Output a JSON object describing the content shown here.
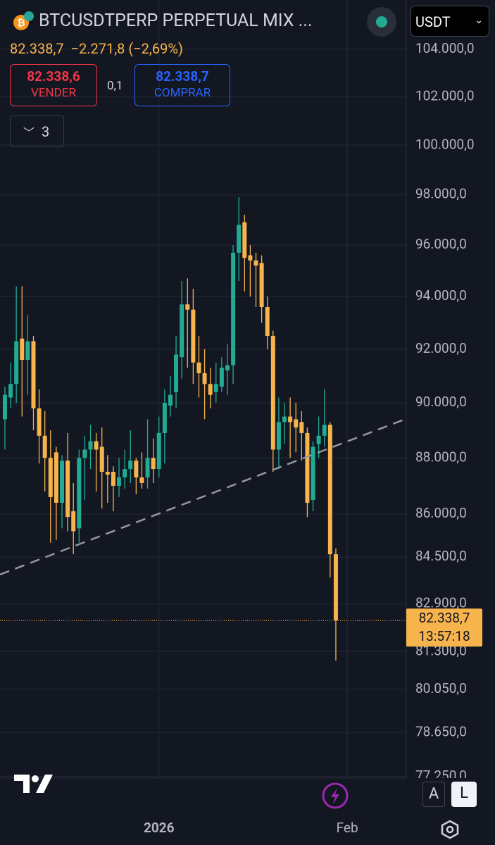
{
  "header": {
    "title": "BTCUSDTPERP PERPETUAL MIX ...",
    "last": "82.338,7",
    "change": "−2.271,8 (−2,69%)",
    "sell_price": "82.338,6",
    "sell_label": "VENDER",
    "spread": "0,1",
    "buy_price": "82.338,7",
    "buy_label": "COMPRAR",
    "indicators": "3",
    "currency": "USDT"
  },
  "chart_data": {
    "type": "candlestick",
    "log": true,
    "grid": true,
    "ylim": [
      77200,
      106120
    ],
    "yticks": [
      {
        "value": 104000,
        "label": "104.000,0"
      },
      {
        "value": 102000,
        "label": "102.000,0"
      },
      {
        "value": 100000,
        "label": "100.000,0"
      },
      {
        "value": 98000,
        "label": "98.000,0"
      },
      {
        "value": 96000,
        "label": "96.000,0"
      },
      {
        "value": 94000,
        "label": "94.000,0"
      },
      {
        "value": 92000,
        "label": "92.000,0"
      },
      {
        "value": 90000,
        "label": "90.000,0"
      },
      {
        "value": 88000,
        "label": "88.000,0"
      },
      {
        "value": 86000,
        "label": "86.000,0"
      },
      {
        "value": 84500,
        "label": "84.500,0"
      },
      {
        "value": 82900,
        "label": "82.900,0"
      },
      {
        "value": 81300,
        "label": "81.300,0"
      },
      {
        "value": 80050,
        "label": "80.050,0"
      },
      {
        "value": 78650,
        "label": "78.650,0"
      },
      {
        "value": 77250,
        "label": "77.250,0"
      }
    ],
    "xlim": [
      -0.86,
      70.1
    ],
    "xticks": [
      {
        "value": 27,
        "label": "2026"
      },
      {
        "value": 60,
        "label": "Feb"
      }
    ],
    "up_color": "#22ab94",
    "down_color": "#f7b34c",
    "open": [
      89400,
      90200,
      90700,
      92400,
      91600,
      92300,
      89800,
      88800,
      88000,
      88200,
      86400,
      87900,
      86100,
      85500,
      88000,
      88300,
      88600,
      88400,
      87500,
      87500,
      87000,
      87300,
      87600,
      87900,
      87300,
      87300,
      88000,
      87600,
      88900,
      89900,
      90400,
      91700,
      93700,
      93500,
      91500,
      91100,
      90700,
      90400,
      90600,
      91200,
      91400,
      95700,
      96900,
      95600,
      95400,
      95300,
      93600,
      92500,
      88300,
      89300,
      89500,
      89400,
      89300,
      88900,
      86500,
      88500,
      88800,
      89200,
      84600
    ],
    "high": [
      90600,
      91500,
      94400,
      94400,
      93300,
      92500,
      90500,
      89700,
      89000,
      88400,
      88100,
      88900,
      87100,
      88300,
      88800,
      89200,
      88900,
      89100,
      88100,
      87700,
      88000,
      88300,
      89000,
      88000,
      88200,
      89400,
      88700,
      89500,
      90500,
      91000,
      92500,
      94600,
      94700,
      94300,
      92500,
      92000,
      91300,
      91500,
      91700,
      92200,
      96000,
      97900,
      97200,
      96000,
      95700,
      95600,
      94000,
      92700,
      90200,
      90000,
      90200,
      90000,
      89700,
      89100,
      88600,
      89500,
      90500,
      89300,
      84800
    ],
    "low": [
      88300,
      89800,
      90000,
      89500,
      90300,
      89000,
      87800,
      86800,
      85000,
      85100,
      85500,
      85400,
      84600,
      85000,
      86500,
      87600,
      86800,
      86200,
      86400,
      86100,
      86600,
      86900,
      87100,
      86700,
      86900,
      86900,
      87100,
      87300,
      87800,
      89500,
      89800,
      90900,
      91300,
      90700,
      90200,
      89400,
      89800,
      90000,
      90400,
      90300,
      90700,
      94600,
      94200,
      94000,
      93600,
      93000,
      92000,
      87500,
      87600,
      88500,
      88000,
      88200,
      87900,
      85900,
      86100,
      88000,
      88400,
      83800,
      81000
    ],
    "close": [
      90300,
      90700,
      92300,
      91600,
      92300,
      89800,
      88800,
      88000,
      86600,
      86400,
      87900,
      85900,
      85400,
      88000,
      88300,
      88600,
      88300,
      87500,
      87400,
      87000,
      87300,
      87600,
      87900,
      87300,
      87100,
      88000,
      87600,
      88900,
      90000,
      90300,
      91800,
      93700,
      93500,
      91500,
      91100,
      90700,
      90300,
      90700,
      91300,
      91400,
      95700,
      96800,
      95500,
      95400,
      95200,
      93600,
      92500,
      88300,
      89300,
      89500,
      89300,
      89100,
      88900,
      86400,
      88400,
      88800,
      89200,
      84600,
      82338.7
    ],
    "trendline": {
      "x": [
        -0.86,
        70.1
      ],
      "y": [
        83900,
        89400
      ],
      "color": "#9598a1"
    },
    "price_line": {
      "value": 82338.7,
      "label": "82.338,7",
      "countdown": "13:57:18"
    }
  },
  "toolbar": {
    "auto": "A",
    "log": "L"
  }
}
